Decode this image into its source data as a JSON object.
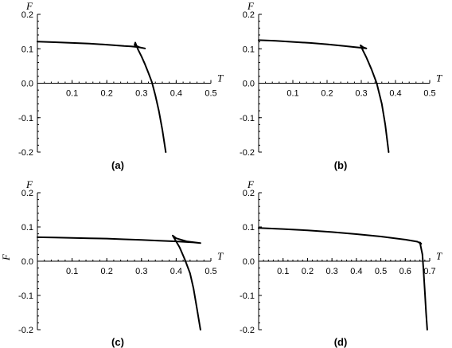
{
  "chart_data": [
    {
      "type": "line",
      "panel_label": "(a)",
      "xlabel": "T",
      "ylabel": "F",
      "side_ylabel": "",
      "xlim": [
        0,
        0.5
      ],
      "ylim": [
        -0.2,
        0.2
      ],
      "xticks": [
        "0.1",
        "0.2",
        "0.3",
        "0.4",
        "0.5"
      ],
      "yticks": [
        "-0.2",
        "-0.1",
        "0.0",
        "0.1",
        "0.2"
      ],
      "series": [
        {
          "x": [
            0.0,
            0.05,
            0.1,
            0.15,
            0.2,
            0.25,
            0.27,
            0.29,
            0.31,
            0.295,
            0.28,
            0.282,
            0.29,
            0.3,
            0.31,
            0.32,
            0.33,
            0.34,
            0.35,
            0.36,
            0.37
          ],
          "y": [
            0.121,
            0.119,
            0.117,
            0.115,
            0.112,
            0.108,
            0.107,
            0.105,
            0.101,
            0.104,
            0.111,
            0.118,
            0.098,
            0.078,
            0.055,
            0.03,
            0.003,
            -0.035,
            -0.08,
            -0.135,
            -0.2
          ]
        }
      ]
    },
    {
      "type": "line",
      "panel_label": "(b)",
      "xlabel": "T",
      "ylabel": "F",
      "side_ylabel": "",
      "xlim": [
        0,
        0.5
      ],
      "ylim": [
        -0.2,
        0.2
      ],
      "xticks": [
        "0.1",
        "0.2",
        "0.3",
        "0.4",
        "0.5"
      ],
      "yticks": [
        "-0.2",
        "-0.1",
        "0.0",
        "0.1",
        "0.2"
      ],
      "series": [
        {
          "x": [
            0.0,
            0.05,
            0.1,
            0.15,
            0.2,
            0.25,
            0.28,
            0.3,
            0.315,
            0.306,
            0.298,
            0.305,
            0.315,
            0.33,
            0.345,
            0.36,
            0.37,
            0.38
          ],
          "y": [
            0.125,
            0.123,
            0.12,
            0.117,
            0.113,
            0.108,
            0.105,
            0.103,
            0.101,
            0.104,
            0.11,
            0.095,
            0.075,
            0.04,
            0.0,
            -0.06,
            -0.12,
            -0.2
          ]
        }
      ]
    },
    {
      "type": "line",
      "panel_label": "(c)",
      "xlabel": "T",
      "ylabel": "F",
      "side_ylabel": "F",
      "xlim": [
        0,
        0.5
      ],
      "ylim": [
        -0.2,
        0.2
      ],
      "xticks": [
        "0.1",
        "0.2",
        "0.3",
        "0.4",
        "0.5"
      ],
      "yticks": [
        "-0.2",
        "-0.1",
        "0.0",
        "0.1",
        "0.2"
      ],
      "series": [
        {
          "x": [
            0.0,
            0.05,
            0.1,
            0.15,
            0.2,
            0.25,
            0.3,
            0.35,
            0.4,
            0.43,
            0.45,
            0.47,
            0.43,
            0.4,
            0.39,
            0.41,
            0.425,
            0.44,
            0.45,
            0.46,
            0.47
          ],
          "y": [
            0.07,
            0.069,
            0.068,
            0.067,
            0.066,
            0.064,
            0.062,
            0.06,
            0.058,
            0.056,
            0.055,
            0.053,
            0.058,
            0.067,
            0.075,
            0.04,
            0.005,
            -0.035,
            -0.08,
            -0.14,
            -0.2
          ]
        }
      ]
    },
    {
      "type": "line",
      "panel_label": "(d)",
      "xlabel": "T",
      "ylabel": "F",
      "side_ylabel": "",
      "xlim": [
        0,
        0.7
      ],
      "ylim": [
        -0.2,
        0.2
      ],
      "xticks": [
        "0.1",
        "0.2",
        "0.3",
        "0.4",
        "0.5",
        "0.6",
        "0.7"
      ],
      "yticks": [
        "-0.2",
        "-0.1",
        "0.0",
        "0.1",
        "0.2"
      ],
      "series": [
        {
          "x": [
            0.0,
            0.1,
            0.2,
            0.3,
            0.4,
            0.5,
            0.6,
            0.65,
            0.665,
            0.66,
            0.67,
            0.675,
            0.68,
            0.685,
            0.69
          ],
          "y": [
            0.097,
            0.094,
            0.09,
            0.085,
            0.079,
            0.072,
            0.063,
            0.057,
            0.051,
            0.055,
            0.02,
            -0.03,
            -0.09,
            -0.15,
            -0.2
          ]
        }
      ]
    }
  ]
}
